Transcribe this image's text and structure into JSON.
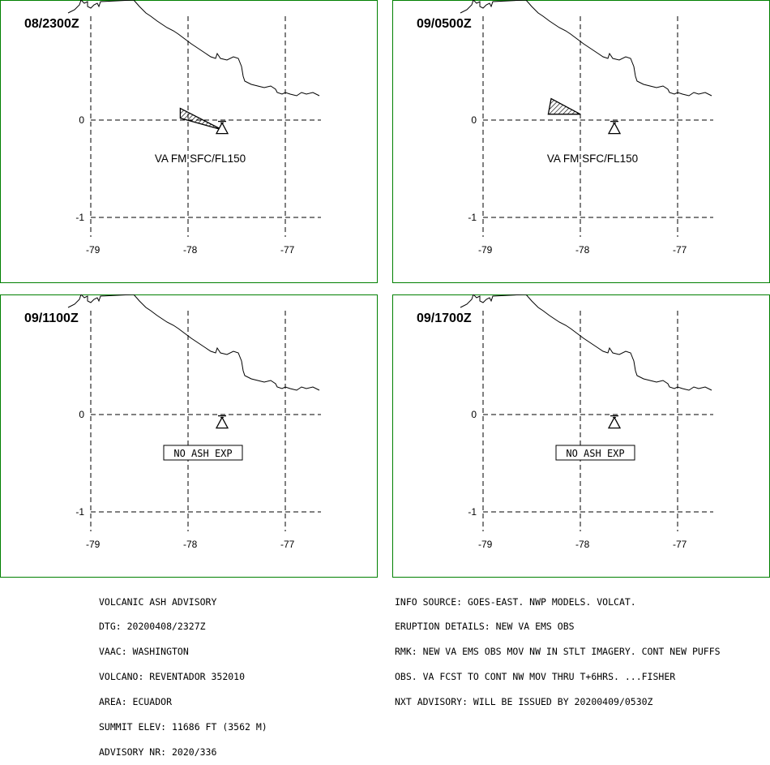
{
  "panels": [
    {
      "time_label": "08/2300Z",
      "status": "VA FM SFC/FL150",
      "boxed": false,
      "ash_polygon": [
        [
          -78.08,
          0.12
        ],
        [
          -77.65,
          -0.1
        ],
        [
          -78.08,
          0.02
        ]
      ]
    },
    {
      "time_label": "09/0500Z",
      "status": "VA FM SFC/FL150",
      "boxed": false,
      "ash_polygon": [
        [
          -78.3,
          0.22
        ],
        [
          -78.0,
          0.06
        ],
        [
          -78.33,
          0.06
        ]
      ]
    },
    {
      "time_label": "09/1100Z",
      "status": "NO ASH EXP",
      "boxed": true,
      "ash_polygon": []
    },
    {
      "time_label": "09/1700Z",
      "status": "NO ASH EXP",
      "boxed": true,
      "ash_polygon": []
    }
  ],
  "map": {
    "lon_ticks": [
      -79,
      -78,
      -77
    ],
    "lat_ticks": [
      0,
      -1
    ],
    "lon_labels": [
      "-79",
      "-78",
      "-77"
    ],
    "lat_labels": [
      "0",
      "-1"
    ],
    "volcano_lonlat": [
      -77.65,
      -0.08
    ],
    "border_color": "#008000",
    "ash_color": "#000000"
  },
  "advisory": {
    "lines": [
      "VOLCANIC ASH ADVISORY",
      "DTG: 20200408/2327Z",
      "VAAC: WASHINGTON",
      "VOLCANO: REVENTADOR 352010",
      "AREA: ECUADOR",
      "SUMMIT ELEV: 11686 FT (3562 M)",
      "ADVISORY NR: 2020/336"
    ]
  },
  "details": {
    "lines": [
      "INFO SOURCE: GOES-EAST. NWP MODELS. VOLCAT.",
      "ERUPTION DETAILS: NEW VA EMS OBS",
      "RMK: NEW VA EMS OBS MOV NW IN STLT IMAGERY. CONT NEW PUFFS",
      "OBS. VA FCST TO CONT NW MOV THRU T+6HRS. ...FISHER",
      "NXT ADVISORY: WILL BE ISSUED BY 20200409/0530Z"
    ]
  }
}
